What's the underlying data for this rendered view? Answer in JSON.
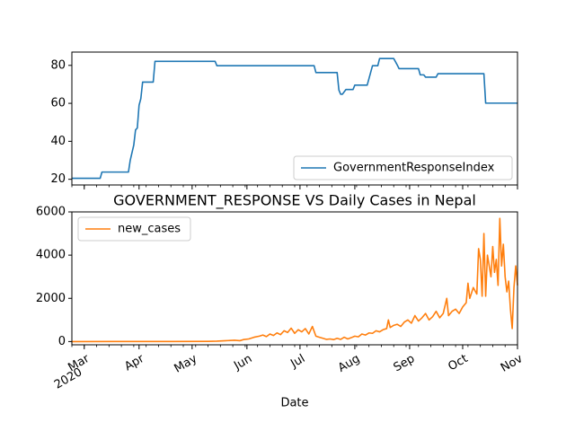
{
  "chart_data": [
    {
      "type": "line",
      "title": "",
      "xlabel": "",
      "ylabel": "",
      "xlim": [
        "2020-02-23",
        "2020-11-01"
      ],
      "ylim": [
        17,
        87
      ],
      "yticks": [
        20,
        40,
        60,
        80
      ],
      "legend": {
        "placement": "lower-right"
      },
      "series": [
        {
          "name": "GovernmentResponseIndex",
          "color": "#1f77b4",
          "points": [
            [
              "2020-02-23",
              20.5
            ],
            [
              "2020-03-10",
              20.5
            ],
            [
              "2020-03-11",
              23.8
            ],
            [
              "2020-03-26",
              23.8
            ],
            [
              "2020-03-27",
              30
            ],
            [
              "2020-03-29",
              38
            ],
            [
              "2020-03-30",
              46
            ],
            [
              "2020-03-31",
              47
            ],
            [
              "2020-04-01",
              59
            ],
            [
              "2020-04-02",
              62.5
            ],
            [
              "2020-04-03",
              71.2
            ],
            [
              "2020-04-09",
              71.2
            ],
            [
              "2020-04-10",
              82.1
            ],
            [
              "2020-05-14",
              82.1
            ],
            [
              "2020-05-15",
              79.8
            ],
            [
              "2020-07-09",
              79.8
            ],
            [
              "2020-07-10",
              76.2
            ],
            [
              "2020-07-22",
              76.2
            ],
            [
              "2020-07-23",
              67
            ],
            [
              "2020-07-24",
              64.8
            ],
            [
              "2020-07-25",
              64.8
            ],
            [
              "2020-07-27",
              67.3
            ],
            [
              "2020-07-31",
              67.3
            ],
            [
              "2020-08-01",
              69.6
            ],
            [
              "2020-08-08",
              69.6
            ],
            [
              "2020-08-11",
              79.8
            ],
            [
              "2020-08-14",
              79.8
            ],
            [
              "2020-08-15",
              83.6
            ],
            [
              "2020-08-23",
              83.6
            ],
            [
              "2020-08-25",
              80.2
            ],
            [
              "2020-08-26",
              78.3
            ],
            [
              "2020-09-06",
              78.3
            ],
            [
              "2020-09-07",
              75
            ],
            [
              "2020-09-09",
              75
            ],
            [
              "2020-09-10",
              73.8
            ],
            [
              "2020-09-16",
              73.8
            ],
            [
              "2020-09-17",
              75.6
            ],
            [
              "2020-10-13",
              75.6
            ],
            [
              "2020-10-14",
              60.1
            ],
            [
              "2020-11-01",
              60.1
            ]
          ]
        }
      ]
    },
    {
      "type": "line",
      "title": "GOVERNMENT_RESPONSE VS Daily Cases in Nepal",
      "xlabel": "Date",
      "ylabel": "",
      "xlim": [
        "2020-02-23",
        "2020-11-01"
      ],
      "ylim": [
        -150,
        6000
      ],
      "yticks": [
        0,
        2000,
        4000,
        6000
      ],
      "xticks": [
        {
          "date": "2020-03-01",
          "label": "Mar",
          "sublabel": "2020"
        },
        {
          "date": "2020-04-01",
          "label": "Apr"
        },
        {
          "date": "2020-05-01",
          "label": "May"
        },
        {
          "date": "2020-06-01",
          "label": "Jun"
        },
        {
          "date": "2020-07-01",
          "label": "Jul"
        },
        {
          "date": "2020-08-01",
          "label": "Aug"
        },
        {
          "date": "2020-09-01",
          "label": "Sep"
        },
        {
          "date": "2020-10-01",
          "label": "Oct"
        },
        {
          "date": "2020-11-01",
          "label": "Nov"
        }
      ],
      "legend": {
        "placement": "upper-left"
      },
      "series": [
        {
          "name": "new_cases",
          "color": "#ff7f0e",
          "points": [
            [
              "2020-02-23",
              0
            ],
            [
              "2020-04-20",
              5
            ],
            [
              "2020-05-10",
              10
            ],
            [
              "2020-05-15",
              20
            ],
            [
              "2020-05-20",
              40
            ],
            [
              "2020-05-25",
              60
            ],
            [
              "2020-05-28",
              40
            ],
            [
              "2020-05-30",
              90
            ],
            [
              "2020-06-02",
              120
            ],
            [
              "2020-06-05",
              200
            ],
            [
              "2020-06-08",
              250
            ],
            [
              "2020-06-10",
              300
            ],
            [
              "2020-06-12",
              230
            ],
            [
              "2020-06-14",
              350
            ],
            [
              "2020-06-16",
              280
            ],
            [
              "2020-06-18",
              400
            ],
            [
              "2020-06-20",
              320
            ],
            [
              "2020-06-22",
              500
            ],
            [
              "2020-06-24",
              420
            ],
            [
              "2020-06-26",
              620
            ],
            [
              "2020-06-28",
              380
            ],
            [
              "2020-06-30",
              550
            ],
            [
              "2020-07-02",
              450
            ],
            [
              "2020-07-04",
              600
            ],
            [
              "2020-07-06",
              350
            ],
            [
              "2020-07-08",
              700
            ],
            [
              "2020-07-10",
              250
            ],
            [
              "2020-07-12",
              200
            ],
            [
              "2020-07-14",
              150
            ],
            [
              "2020-07-16",
              100
            ],
            [
              "2020-07-18",
              120
            ],
            [
              "2020-07-20",
              90
            ],
            [
              "2020-07-22",
              150
            ],
            [
              "2020-07-24",
              100
            ],
            [
              "2020-07-26",
              200
            ],
            [
              "2020-07-28",
              120
            ],
            [
              "2020-07-30",
              180
            ],
            [
              "2020-08-01",
              250
            ],
            [
              "2020-08-03",
              220
            ],
            [
              "2020-08-05",
              350
            ],
            [
              "2020-08-07",
              300
            ],
            [
              "2020-08-09",
              400
            ],
            [
              "2020-08-11",
              380
            ],
            [
              "2020-08-13",
              500
            ],
            [
              "2020-08-15",
              450
            ],
            [
              "2020-08-17",
              550
            ],
            [
              "2020-08-19",
              600
            ],
            [
              "2020-08-20",
              1000
            ],
            [
              "2020-08-21",
              650
            ],
            [
              "2020-08-23",
              750
            ],
            [
              "2020-08-25",
              800
            ],
            [
              "2020-08-27",
              700
            ],
            [
              "2020-08-29",
              900
            ],
            [
              "2020-08-31",
              1000
            ],
            [
              "2020-09-02",
              850
            ],
            [
              "2020-09-04",
              1200
            ],
            [
              "2020-09-06",
              950
            ],
            [
              "2020-09-08",
              1100
            ],
            [
              "2020-09-10",
              1300
            ],
            [
              "2020-09-12",
              1000
            ],
            [
              "2020-09-14",
              1150
            ],
            [
              "2020-09-16",
              1400
            ],
            [
              "2020-09-18",
              1100
            ],
            [
              "2020-09-20",
              1300
            ],
            [
              "2020-09-22",
              2000
            ],
            [
              "2020-09-23",
              1200
            ],
            [
              "2020-09-25",
              1400
            ],
            [
              "2020-09-27",
              1500
            ],
            [
              "2020-09-29",
              1300
            ],
            [
              "2020-10-01",
              1600
            ],
            [
              "2020-10-03",
              1800
            ],
            [
              "2020-10-04",
              2700
            ],
            [
              "2020-10-05",
              2000
            ],
            [
              "2020-10-07",
              2500
            ],
            [
              "2020-10-09",
              2200
            ],
            [
              "2020-10-10",
              4300
            ],
            [
              "2020-10-11",
              3800
            ],
            [
              "2020-10-12",
              2100
            ],
            [
              "2020-10-13",
              5000
            ],
            [
              "2020-10-14",
              2100
            ],
            [
              "2020-10-15",
              4000
            ],
            [
              "2020-10-17",
              3000
            ],
            [
              "2020-10-18",
              4400
            ],
            [
              "2020-10-19",
              3200
            ],
            [
              "2020-10-20",
              3800
            ],
            [
              "2020-10-21",
              2600
            ],
            [
              "2020-10-22",
              5700
            ],
            [
              "2020-10-23",
              3500
            ],
            [
              "2020-10-24",
              4500
            ],
            [
              "2020-10-25",
              3000
            ],
            [
              "2020-10-26",
              2300
            ],
            [
              "2020-10-27",
              2800
            ],
            [
              "2020-10-28",
              1500
            ],
            [
              "2020-10-29",
              600
            ],
            [
              "2020-10-30",
              2500
            ],
            [
              "2020-10-31",
              3500
            ],
            [
              "2020-11-01",
              2600
            ]
          ]
        }
      ]
    }
  ]
}
